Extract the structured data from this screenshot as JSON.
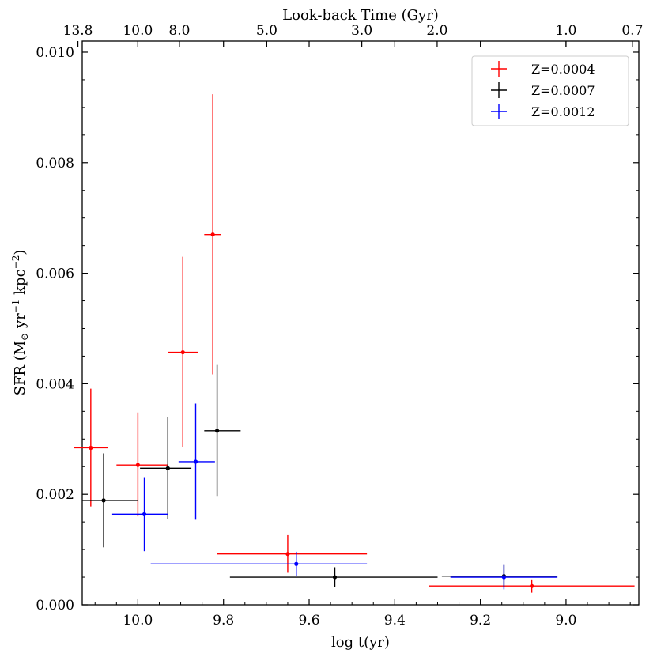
{
  "chart_data": {
    "type": "scatter",
    "xlabel": "log t(yr)",
    "ylabel_main": "SFR (M",
    "ylabel_sun": "⊙",
    "ylabel_yr": " yr",
    "ylabel_exp1": "−1",
    "ylabel_kpc": " kpc",
    "ylabel_exp2": "−2",
    "ylabel_close": ")",
    "top_xlabel": "Look-back Time (Gyr)",
    "xlim": [
      10.13,
      8.83
    ],
    "ylim": [
      0.0,
      0.0102
    ],
    "x_ticks": [
      {
        "value": 10.0,
        "label": "10.0"
      },
      {
        "value": 9.8,
        "label": "9.8"
      },
      {
        "value": 9.6,
        "label": "9.6"
      },
      {
        "value": 9.4,
        "label": "9.4"
      },
      {
        "value": 9.2,
        "label": "9.2"
      },
      {
        "value": 9.0,
        "label": "9.0"
      }
    ],
    "y_ticks": [
      {
        "value": 0.0,
        "label": "0.000"
      },
      {
        "value": 0.002,
        "label": "0.002"
      },
      {
        "value": 0.004,
        "label": "0.004"
      },
      {
        "value": 0.006,
        "label": "0.006"
      },
      {
        "value": 0.008,
        "label": "0.008"
      },
      {
        "value": 0.01,
        "label": "0.010"
      }
    ],
    "top_ticks": [
      {
        "value": 10.14,
        "label": "13.8"
      },
      {
        "value": 10.0,
        "label": "10.0"
      },
      {
        "value": 9.903,
        "label": "8.0"
      },
      {
        "value": 9.699,
        "label": "5.0"
      },
      {
        "value": 9.477,
        "label": "3.0"
      },
      {
        "value": 9.301,
        "label": "2.0"
      },
      {
        "value": 9.0,
        "label": "1.0"
      },
      {
        "value": 8.845,
        "label": "0.7"
      }
    ],
    "legend": {
      "position": "top-right"
    },
    "series": [
      {
        "name": "Z=0.0004",
        "color": "#ff0000",
        "points": [
          {
            "x": 10.11,
            "y": 0.00284,
            "xerr": [
              0.04,
              0.04
            ],
            "yerr": [
              0.00106,
              0.00107
            ]
          },
          {
            "x": 10.0,
            "y": 0.00253,
            "xerr": [
              0.05,
              0.07
            ],
            "yerr": [
              0.00093,
              0.00095
            ]
          },
          {
            "x": 9.895,
            "y": 0.00457,
            "xerr": [
              0.035,
              0.035
            ],
            "yerr": [
              0.00172,
              0.00173
            ]
          },
          {
            "x": 9.825,
            "y": 0.0067,
            "xerr": [
              0.02,
              0.02
            ],
            "yerr": [
              0.00253,
              0.00254
            ]
          },
          {
            "x": 9.65,
            "y": 0.00092,
            "xerr": [
              0.165,
              0.185
            ],
            "yerr": [
              0.00034,
              0.00034
            ]
          },
          {
            "x": 9.08,
            "y": 0.00034,
            "xerr": [
              0.24,
              0.24
            ],
            "yerr": [
              0.00012,
              0.00012
            ]
          }
        ]
      },
      {
        "name": "Z=0.0007",
        "color": "#000000",
        "points": [
          {
            "x": 10.08,
            "y": 0.00189,
            "xerr": [
              0.05,
              0.08
            ],
            "yerr": [
              0.00085,
              0.00085
            ]
          },
          {
            "x": 9.93,
            "y": 0.00247,
            "xerr": [
              0.065,
              0.055
            ],
            "yerr": [
              0.00092,
              0.00093
            ]
          },
          {
            "x": 9.815,
            "y": 0.00315,
            "xerr": [
              0.03,
              0.055
            ],
            "yerr": [
              0.00118,
              0.00119
            ]
          },
          {
            "x": 9.54,
            "y": 0.0005,
            "xerr": [
              0.245,
              0.24
            ],
            "yerr": [
              0.00018,
              0.00018
            ]
          },
          {
            "x": 9.145,
            "y": 0.00052,
            "xerr": [
              0.145,
              0.125
            ],
            "yerr": [
              0.0002,
              0.0002
            ]
          }
        ]
      },
      {
        "name": "Z=0.0012",
        "color": "#0000ff",
        "points": [
          {
            "x": 9.985,
            "y": 0.00164,
            "xerr": [
              0.075,
              0.055
            ],
            "yerr": [
              0.00067,
              0.00067
            ]
          },
          {
            "x": 9.865,
            "y": 0.00259,
            "xerr": [
              0.04,
              0.045
            ],
            "yerr": [
              0.00105,
              0.00105
            ]
          },
          {
            "x": 9.63,
            "y": 0.00074,
            "xerr": [
              0.34,
              0.165
            ],
            "yerr": [
              0.00022,
              0.00022
            ]
          },
          {
            "x": 9.145,
            "y": 0.0005,
            "xerr": [
              0.125,
              0.125
            ],
            "yerr": [
              0.00022,
              0.00022
            ]
          }
        ]
      }
    ]
  }
}
